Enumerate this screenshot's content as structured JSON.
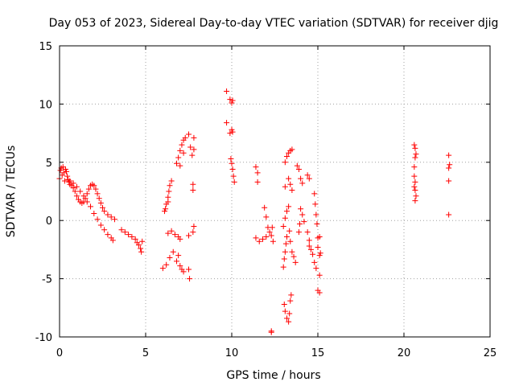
{
  "chart_data": {
    "type": "scatter",
    "title": "Day 053 of 2023, Sidereal Day-to-day VTEC variation (SDTVAR) for receiver djig",
    "xlabel": "GPS time / hours",
    "ylabel": "SDTVAR / TECUs",
    "xlim": [
      0,
      25
    ],
    "ylim": [
      -10,
      15
    ],
    "xticks": [
      "0",
      "5",
      "10",
      "15",
      "20",
      "25"
    ],
    "yticks": [
      "-10",
      "-5",
      "0",
      "5",
      "10",
      "15"
    ],
    "grid": true,
    "marker": "+",
    "marker_color": "#ff0000",
    "series": [
      {
        "name": "SDTVAR",
        "points": [
          [
            0.0,
            3.6
          ],
          [
            0.05,
            4.3
          ],
          [
            0.1,
            4.5
          ],
          [
            0.15,
            3.9
          ],
          [
            0.2,
            4.6
          ],
          [
            0.25,
            4.1
          ],
          [
            0.3,
            3.4
          ],
          [
            0.35,
            4.4
          ],
          [
            0.4,
            4.2
          ],
          [
            0.45,
            3.8
          ],
          [
            0.5,
            3.5
          ],
          [
            0.55,
            3.3
          ],
          [
            0.6,
            3.1
          ],
          [
            0.7,
            3.0
          ],
          [
            0.8,
            2.8
          ],
          [
            0.9,
            2.5
          ],
          [
            1.0,
            2.1
          ],
          [
            1.1,
            1.8
          ],
          [
            1.2,
            1.6
          ],
          [
            1.3,
            1.5
          ],
          [
            1.4,
            1.6
          ],
          [
            1.5,
            1.9
          ],
          [
            1.6,
            2.3
          ],
          [
            1.7,
            2.7
          ],
          [
            1.8,
            3.0
          ],
          [
            1.9,
            3.1
          ],
          [
            2.0,
            3.0
          ],
          [
            2.1,
            2.7
          ],
          [
            2.2,
            2.3
          ],
          [
            2.3,
            1.9
          ],
          [
            2.4,
            1.5
          ],
          [
            2.5,
            1.1
          ],
          [
            2.6,
            0.8
          ],
          [
            2.8,
            0.5
          ],
          [
            3.0,
            0.3
          ],
          [
            3.2,
            0.1
          ],
          [
            0.6,
            3.4
          ],
          [
            0.8,
            3.2
          ],
          [
            1.0,
            2.9
          ],
          [
            1.2,
            2.5
          ],
          [
            1.4,
            2.1
          ],
          [
            1.6,
            1.6
          ],
          [
            1.8,
            1.2
          ],
          [
            2.0,
            0.6
          ],
          [
            2.2,
            0.1
          ],
          [
            2.4,
            -0.4
          ],
          [
            2.6,
            -0.8
          ],
          [
            2.8,
            -1.2
          ],
          [
            3.0,
            -1.5
          ],
          [
            3.1,
            -1.7
          ],
          [
            3.6,
            -0.8
          ],
          [
            3.8,
            -1.0
          ],
          [
            4.0,
            -1.2
          ],
          [
            4.2,
            -1.4
          ],
          [
            4.4,
            -1.6
          ],
          [
            4.5,
            -1.9
          ],
          [
            4.6,
            -2.1
          ],
          [
            4.7,
            -2.4
          ],
          [
            4.8,
            -1.8
          ],
          [
            4.75,
            -2.7
          ],
          [
            6.0,
            -4.1
          ],
          [
            6.2,
            -3.8
          ],
          [
            6.4,
            -3.2
          ],
          [
            6.6,
            -2.7
          ],
          [
            6.8,
            -3.5
          ],
          [
            7.0,
            -3.9
          ],
          [
            7.2,
            -4.4
          ],
          [
            7.1,
            -4.2
          ],
          [
            6.9,
            -3.0
          ],
          [
            6.1,
            0.8
          ],
          [
            6.15,
            1.0
          ],
          [
            6.2,
            1.4
          ],
          [
            6.3,
            2.0
          ],
          [
            6.35,
            2.5
          ],
          [
            6.4,
            3.0
          ],
          [
            6.5,
            3.4
          ],
          [
            6.3,
            1.6
          ],
          [
            6.3,
            -1.1
          ],
          [
            6.5,
            -0.9
          ],
          [
            6.7,
            -1.2
          ],
          [
            6.9,
            -1.4
          ],
          [
            7.0,
            -1.6
          ],
          [
            6.8,
            4.9
          ],
          [
            6.9,
            5.4
          ],
          [
            7.0,
            6.0
          ],
          [
            7.1,
            6.5
          ],
          [
            7.2,
            6.9
          ],
          [
            7.3,
            7.1
          ],
          [
            7.0,
            4.7
          ],
          [
            7.2,
            5.8
          ],
          [
            7.5,
            7.4
          ],
          [
            7.6,
            6.3
          ],
          [
            7.7,
            5.6
          ],
          [
            7.8,
            7.1
          ],
          [
            7.8,
            6.1
          ],
          [
            7.75,
            3.1
          ],
          [
            7.75,
            2.6
          ],
          [
            7.8,
            -0.5
          ],
          [
            7.75,
            -1.0
          ],
          [
            7.5,
            -1.3
          ],
          [
            7.5,
            -4.2
          ],
          [
            7.55,
            -5.0
          ],
          [
            9.7,
            11.1
          ],
          [
            9.7,
            8.4
          ],
          [
            9.9,
            10.4
          ],
          [
            10.0,
            10.1
          ],
          [
            10.05,
            10.3
          ],
          [
            9.9,
            7.5
          ],
          [
            10.0,
            7.8
          ],
          [
            10.05,
            7.6
          ],
          [
            9.95,
            5.3
          ],
          [
            10.0,
            4.9
          ],
          [
            10.05,
            4.4
          ],
          [
            10.1,
            3.8
          ],
          [
            10.15,
            3.3
          ],
          [
            11.4,
            4.6
          ],
          [
            11.5,
            4.1
          ],
          [
            11.5,
            3.3
          ],
          [
            11.4,
            -1.5
          ],
          [
            11.6,
            -1.8
          ],
          [
            11.8,
            -1.6
          ],
          [
            12.0,
            -1.4
          ],
          [
            11.9,
            1.1
          ],
          [
            12.0,
            0.3
          ],
          [
            12.1,
            -0.6
          ],
          [
            12.2,
            -1.0
          ],
          [
            12.3,
            -1.3
          ],
          [
            12.35,
            -0.6
          ],
          [
            12.4,
            -1.8
          ],
          [
            12.3,
            -9.5
          ],
          [
            12.3,
            -9.6
          ],
          [
            13.0,
            -4.0
          ],
          [
            13.05,
            -3.3
          ],
          [
            13.1,
            -2.7
          ],
          [
            13.15,
            -2.0
          ],
          [
            13.2,
            -1.4
          ],
          [
            13.0,
            -0.5
          ],
          [
            13.1,
            0.2
          ],
          [
            13.2,
            0.8
          ],
          [
            13.3,
            1.2
          ],
          [
            13.35,
            -0.9
          ],
          [
            13.4,
            -1.8
          ],
          [
            13.5,
            -2.7
          ],
          [
            13.6,
            -3.1
          ],
          [
            13.7,
            -3.6
          ],
          [
            13.05,
            -7.2
          ],
          [
            13.1,
            -7.8
          ],
          [
            13.2,
            -8.4
          ],
          [
            13.3,
            -8.7
          ],
          [
            13.35,
            -8.0
          ],
          [
            13.4,
            -6.9
          ],
          [
            13.45,
            -6.4
          ],
          [
            13.1,
            5.0
          ],
          [
            13.2,
            5.5
          ],
          [
            13.3,
            5.8
          ],
          [
            13.4,
            6.0
          ],
          [
            13.5,
            6.1
          ],
          [
            13.3,
            3.6
          ],
          [
            13.4,
            3.1
          ],
          [
            13.5,
            2.6
          ],
          [
            13.1,
            2.9
          ],
          [
            13.8,
            4.7
          ],
          [
            13.9,
            4.4
          ],
          [
            14.0,
            3.6
          ],
          [
            14.1,
            3.2
          ],
          [
            14.0,
            1.0
          ],
          [
            14.1,
            0.5
          ],
          [
            14.2,
            -0.1
          ],
          [
            13.9,
            -1.0
          ],
          [
            13.95,
            -0.3
          ],
          [
            14.4,
            3.9
          ],
          [
            14.5,
            3.6
          ],
          [
            14.4,
            -1.0
          ],
          [
            14.5,
            -1.7
          ],
          [
            14.5,
            -2.2
          ],
          [
            14.6,
            -2.5
          ],
          [
            14.7,
            -2.9
          ],
          [
            14.8,
            -3.6
          ],
          [
            14.9,
            -4.1
          ],
          [
            14.8,
            2.3
          ],
          [
            14.85,
            1.4
          ],
          [
            14.9,
            0.5
          ],
          [
            14.95,
            -0.3
          ],
          [
            15.0,
            -1.5
          ],
          [
            15.1,
            -1.4
          ],
          [
            15.0,
            -2.3
          ],
          [
            15.1,
            -3.0
          ],
          [
            15.15,
            -2.8
          ],
          [
            15.1,
            -4.7
          ],
          [
            15.0,
            -6.0
          ],
          [
            15.1,
            -6.2
          ],
          [
            20.6,
            6.5
          ],
          [
            20.65,
            6.2
          ],
          [
            20.7,
            5.7
          ],
          [
            20.65,
            5.4
          ],
          [
            20.6,
            4.6
          ],
          [
            20.6,
            3.8
          ],
          [
            20.65,
            3.3
          ],
          [
            20.6,
            2.9
          ],
          [
            20.65,
            2.6
          ],
          [
            20.7,
            2.1
          ],
          [
            20.65,
            1.7
          ],
          [
            22.6,
            5.6
          ],
          [
            22.65,
            4.8
          ],
          [
            22.6,
            4.5
          ],
          [
            22.6,
            3.4
          ],
          [
            22.6,
            0.5
          ]
        ]
      }
    ]
  }
}
